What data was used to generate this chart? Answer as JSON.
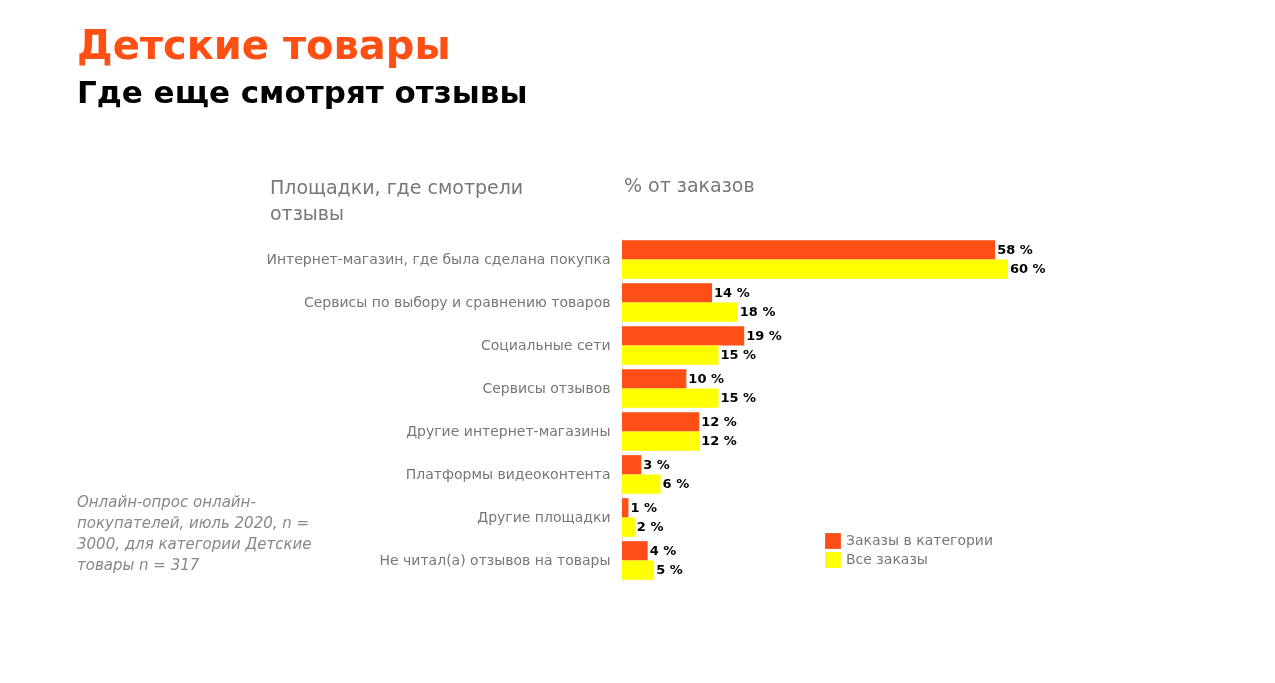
{
  "chart_data": {
    "type": "bar",
    "orientation": "horizontal",
    "title": "Детские товары",
    "subtitle": "Где еще смотрят отзывы",
    "ylabel": "Площадки, где смотрели отзывы",
    "xlabel": "% от заказов",
    "categories": [
      "Интернет-магазин, где была сделана покупка",
      "Сервисы по выбору и сравнению товаров",
      "Социальные сети",
      "Сервисы отзывов",
      "Другие интернет-магазины",
      "Платформы видеоконтента",
      "Другие площадки",
      "Не читал(а) отзывов на товары"
    ],
    "series": [
      {
        "name": "Заказы в категории",
        "color": "#ff4f17",
        "values": [
          58,
          14,
          19,
          10,
          12,
          3,
          1,
          4
        ],
        "value_labels": [
          "58 %",
          "14 %",
          "19 %",
          "10 %",
          "12 %",
          "3 %",
          "1 %",
          "4 %"
        ]
      },
      {
        "name": "Все заказы",
        "color": "#ffff00",
        "values": [
          60,
          18,
          15,
          15,
          12,
          6,
          2,
          5
        ],
        "value_labels": [
          "60 %",
          "18 %",
          "15 %",
          "15 %",
          "12 %",
          "6 %",
          "2 %",
          "5 %"
        ]
      }
    ],
    "xlim": [
      0,
      60
    ],
    "legend": "bottom right",
    "annotations": [
      "Онлайн-опрос онлайн-покупателей, июль 2020, n = 3000, для категории Детские товары n = 317"
    ]
  }
}
